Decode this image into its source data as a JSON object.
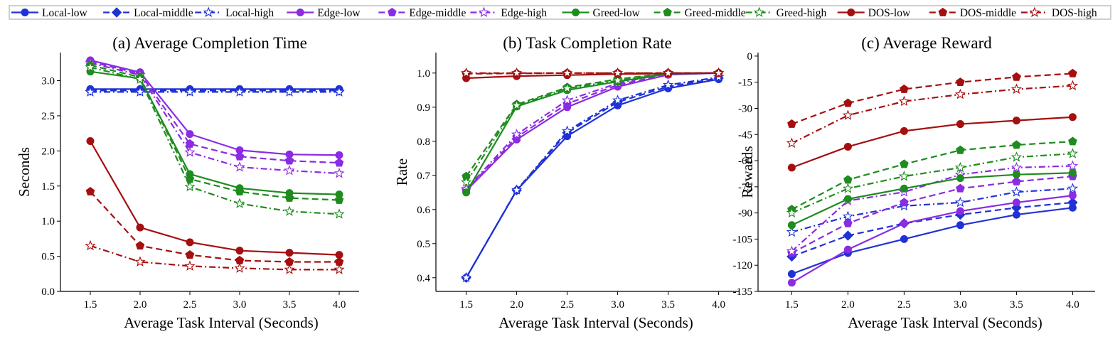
{
  "legend": {
    "location": "top, single row above all panels",
    "entries": [
      {
        "name": "Local-low",
        "color": "#1f32d6",
        "dash": "solid",
        "marker": "circle"
      },
      {
        "name": "Local-middle",
        "color": "#1f32d6",
        "dash": "dashed",
        "marker": "diamond"
      },
      {
        "name": "Local-high",
        "color": "#1f32d6",
        "dash": "dashdot",
        "marker": "star-open"
      },
      {
        "name": "Edge-low",
        "color": "#8b2be2",
        "dash": "solid",
        "marker": "circle"
      },
      {
        "name": "Edge-middle",
        "color": "#8b2be2",
        "dash": "dashed",
        "marker": "pentagon"
      },
      {
        "name": "Edge-high",
        "color": "#8b2be2",
        "dash": "dashdot",
        "marker": "star-open"
      },
      {
        "name": "Greed-low",
        "color": "#1e8c1e",
        "dash": "solid",
        "marker": "circle"
      },
      {
        "name": "Greed-middle",
        "color": "#1e8c1e",
        "dash": "dashed",
        "marker": "pentagon"
      },
      {
        "name": "Greed-high",
        "color": "#1e8c1e",
        "dash": "dashdot",
        "marker": "star-open"
      },
      {
        "name": "DOS-low",
        "color": "#a50f0f",
        "dash": "solid",
        "marker": "circle"
      },
      {
        "name": "DOS-middle",
        "color": "#a50f0f",
        "dash": "dashed",
        "marker": "pentagon"
      },
      {
        "name": "DOS-high",
        "color": "#a50f0f",
        "dash": "dashdot",
        "marker": "star-open"
      }
    ]
  },
  "chart_data": [
    {
      "type": "line",
      "title": "(a) Average Completion Time",
      "xlabel": "Average Task Interval (Seconds)",
      "ylabel": "Seconds",
      "x": [
        1.5,
        2.0,
        2.5,
        3.0,
        3.5,
        4.0
      ],
      "xticks": [
        "1.5",
        "2.0",
        "2.5",
        "3.0",
        "3.5",
        "4.0"
      ],
      "xlim": [
        1.2,
        4.2
      ],
      "ylim": [
        0.0,
        3.4
      ],
      "yticks": [
        "0.0",
        "0.5",
        "1.0",
        "1.5",
        "2.0",
        "2.5",
        "3.0"
      ],
      "yticks_values": [
        0,
        0.5,
        1.0,
        1.5,
        2.0,
        2.5,
        3.0
      ],
      "grid": false,
      "series": [
        {
          "name": "Local-low",
          "values": [
            2.88,
            2.88,
            2.88,
            2.88,
            2.88,
            2.88
          ]
        },
        {
          "name": "Local-middle",
          "values": [
            2.86,
            2.86,
            2.86,
            2.86,
            2.86,
            2.86
          ]
        },
        {
          "name": "Local-high",
          "values": [
            2.84,
            2.84,
            2.84,
            2.84,
            2.84,
            2.84
          ]
        },
        {
          "name": "Edge-low",
          "values": [
            3.29,
            3.12,
            2.24,
            2.01,
            1.95,
            1.94
          ]
        },
        {
          "name": "Edge-middle",
          "values": [
            3.27,
            3.1,
            2.1,
            1.92,
            1.86,
            1.83
          ]
        },
        {
          "name": "Edge-high",
          "values": [
            3.25,
            3.08,
            1.98,
            1.77,
            1.72,
            1.68
          ]
        },
        {
          "name": "Greed-low",
          "values": [
            3.13,
            3.03,
            1.67,
            1.47,
            1.4,
            1.38
          ]
        },
        {
          "name": "Greed-middle",
          "values": [
            3.22,
            3.05,
            1.6,
            1.42,
            1.33,
            1.3
          ]
        },
        {
          "name": "Greed-high",
          "values": [
            3.19,
            3.02,
            1.49,
            1.25,
            1.14,
            1.1
          ]
        },
        {
          "name": "DOS-low",
          "values": [
            2.14,
            0.91,
            0.7,
            0.58,
            0.55,
            0.52
          ]
        },
        {
          "name": "DOS-middle",
          "values": [
            1.42,
            0.65,
            0.52,
            0.44,
            0.42,
            0.42
          ]
        },
        {
          "name": "DOS-high",
          "values": [
            0.65,
            0.42,
            0.36,
            0.33,
            0.31,
            0.31
          ]
        }
      ]
    },
    {
      "type": "line",
      "title": "(b) Task Completion Rate",
      "xlabel": "Average Task Interval (Seconds)",
      "ylabel": "Rate",
      "x": [
        1.5,
        2.0,
        2.5,
        3.0,
        3.5,
        4.0
      ],
      "xticks": [
        "1.5",
        "2.0",
        "2.5",
        "3.0",
        "3.5",
        "4.0"
      ],
      "xlim": [
        1.2,
        4.2
      ],
      "ylim": [
        0.36,
        1.06
      ],
      "yticks": [
        "0.4",
        "0.5",
        "0.6",
        "0.7",
        "0.8",
        "0.9",
        "1.0"
      ],
      "yticks_values": [
        0.4,
        0.5,
        0.6,
        0.7,
        0.8,
        0.9,
        1.0
      ],
      "grid": false,
      "series": [
        {
          "name": "Local-low",
          "values": [
            0.4,
            0.656,
            0.815,
            0.905,
            0.955,
            0.982
          ]
        },
        {
          "name": "Local-middle",
          "values": [
            0.4,
            0.657,
            0.825,
            0.915,
            0.96,
            0.985
          ]
        },
        {
          "name": "Local-high",
          "values": [
            0.4,
            0.657,
            0.83,
            0.92,
            0.965,
            0.988
          ]
        },
        {
          "name": "Edge-low",
          "values": [
            0.655,
            0.805,
            0.9,
            0.96,
            0.995,
            1.0
          ]
        },
        {
          "name": "Edge-middle",
          "values": [
            0.657,
            0.812,
            0.91,
            0.965,
            0.998,
            1.0
          ]
        },
        {
          "name": "Edge-high",
          "values": [
            0.66,
            0.82,
            0.92,
            0.97,
            1.0,
            1.0
          ]
        },
        {
          "name": "Greed-low",
          "values": [
            0.65,
            0.902,
            0.95,
            0.975,
            0.998,
            1.0
          ]
        },
        {
          "name": "Greed-middle",
          "values": [
            0.697,
            0.908,
            0.958,
            0.982,
            1.0,
            1.0
          ]
        },
        {
          "name": "Greed-high",
          "values": [
            0.68,
            0.905,
            0.955,
            0.978,
            0.999,
            1.0
          ]
        },
        {
          "name": "DOS-low",
          "values": [
            0.985,
            0.991,
            0.994,
            0.997,
            0.999,
            1.0
          ]
        },
        {
          "name": "DOS-middle",
          "values": [
            0.998,
            0.999,
            1.0,
            1.0,
            1.0,
            1.0
          ]
        },
        {
          "name": "DOS-high",
          "values": [
            1.0,
            1.0,
            1.0,
            1.0,
            1.0,
            1.0
          ]
        }
      ]
    },
    {
      "type": "line",
      "title": "(c) Average Reward",
      "xlabel": "Average Task Interval (Seconds)",
      "ylabel": "Rewards",
      "x": [
        1.5,
        2.0,
        2.5,
        3.0,
        3.5,
        4.0
      ],
      "xticks": [
        "1.5",
        "2.0",
        "2.5",
        "3.0",
        "3.5",
        "4.0"
      ],
      "xlim": [
        1.2,
        4.2
      ],
      "ylim": [
        -135,
        2
      ],
      "yticks": [
        "0",
        "-15",
        "-30",
        "-45",
        "-60",
        "-75",
        "-90",
        "-105",
        "-120",
        "-135"
      ],
      "yticks_values": [
        0,
        -15,
        -30,
        -45,
        -60,
        -75,
        -90,
        -105,
        -120,
        -135
      ],
      "grid": false,
      "series": [
        {
          "name": "Local-low",
          "values": [
            -125,
            -113,
            -105,
            -97,
            -91,
            -87
          ]
        },
        {
          "name": "Local-middle",
          "values": [
            -115,
            -103,
            -96,
            -91,
            -87,
            -84
          ]
        },
        {
          "name": "Local-high",
          "values": [
            -101,
            -92,
            -86,
            -84,
            -78,
            -76
          ]
        },
        {
          "name": "Edge-low",
          "values": [
            -130,
            -111,
            -96,
            -89,
            -84,
            -80
          ]
        },
        {
          "name": "Edge-middle",
          "values": [
            -113,
            -96,
            -84,
            -76,
            -72,
            -69
          ]
        },
        {
          "name": "Edge-high",
          "values": [
            -112,
            -83,
            -78,
            -68,
            -64,
            -63
          ]
        },
        {
          "name": "Greed-low",
          "values": [
            -97,
            -82,
            -76,
            -70,
            -68,
            -67
          ]
        },
        {
          "name": "Greed-middle",
          "values": [
            -88,
            -71,
            -62,
            -54,
            -51,
            -49
          ]
        },
        {
          "name": "Greed-high",
          "values": [
            -90,
            -76,
            -69,
            -64,
            -58,
            -56
          ]
        },
        {
          "name": "DOS-low",
          "values": [
            -64,
            -52,
            -43,
            -39,
            -37,
            -35
          ]
        },
        {
          "name": "DOS-middle",
          "values": [
            -39,
            -27,
            -19,
            -15,
            -12,
            -10
          ]
        },
        {
          "name": "DOS-high",
          "values": [
            -50,
            -34,
            -26,
            -22,
            -19,
            -17
          ]
        }
      ]
    }
  ]
}
